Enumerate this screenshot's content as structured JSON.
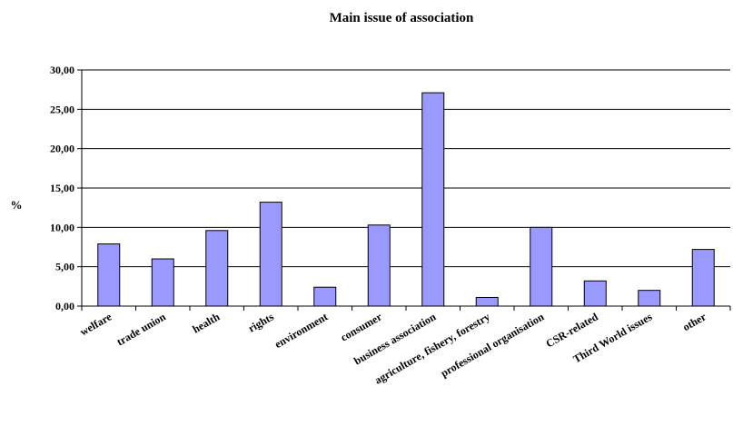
{
  "chart_data": {
    "type": "bar",
    "title": "Main issue of association",
    "xlabel": "",
    "ylabel": "%",
    "ylim": [
      0,
      30
    ],
    "yticks": [
      "0,00",
      "5,00",
      "10,00",
      "15,00",
      "20,00",
      "25,00",
      "30,00"
    ],
    "grid": true,
    "categories": [
      "welfare",
      "trade union",
      "health",
      "rights",
      "environment",
      "consumer",
      "business association",
      "agriculture, fishery, forestry",
      "professional organisation",
      "CSR-related",
      "Third World issues",
      "other"
    ],
    "values": [
      7.9,
      6.0,
      9.6,
      13.2,
      2.4,
      10.3,
      27.1,
      1.1,
      10.0,
      3.2,
      2.0,
      7.2
    ],
    "bar_color": "#9999ff"
  }
}
